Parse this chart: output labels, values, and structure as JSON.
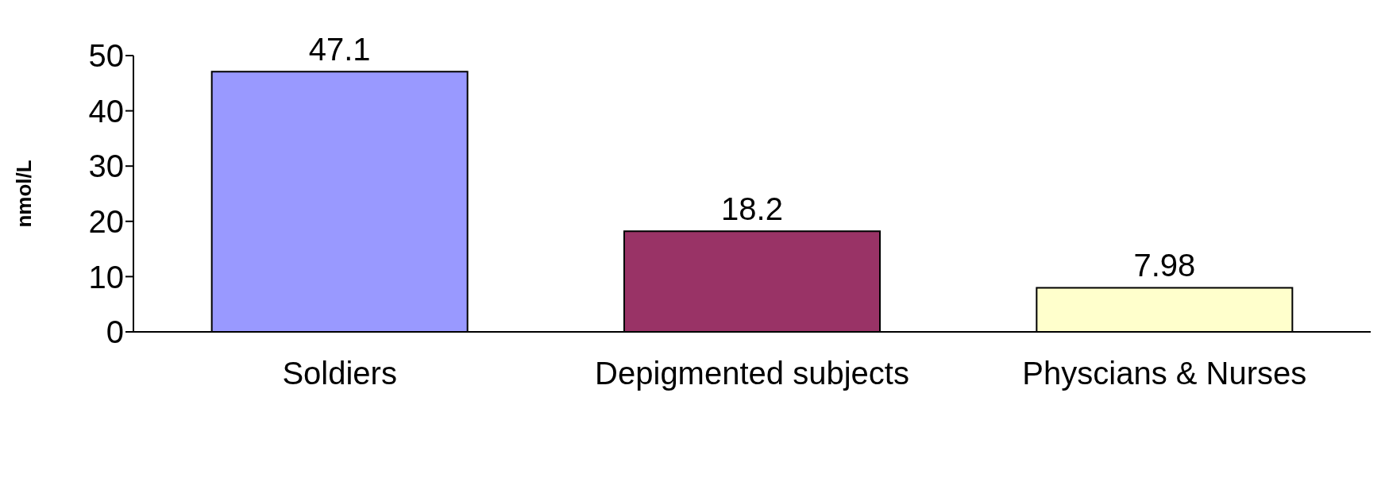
{
  "chart_data": {
    "type": "bar",
    "ylabel": "nmol/L",
    "categories": [
      "Soldiers",
      "Depigmented subjects",
      "Physcians & Nurses"
    ],
    "values": [
      47.1,
      18.2,
      7.98
    ],
    "colors": [
      "#9999ff",
      "#993366",
      "#ffffcc"
    ],
    "ylim": [
      0,
      50
    ],
    "yticks": [
      0,
      10,
      20,
      30,
      40,
      50
    ],
    "grid": false,
    "legend": false,
    "data_labels": true
  }
}
